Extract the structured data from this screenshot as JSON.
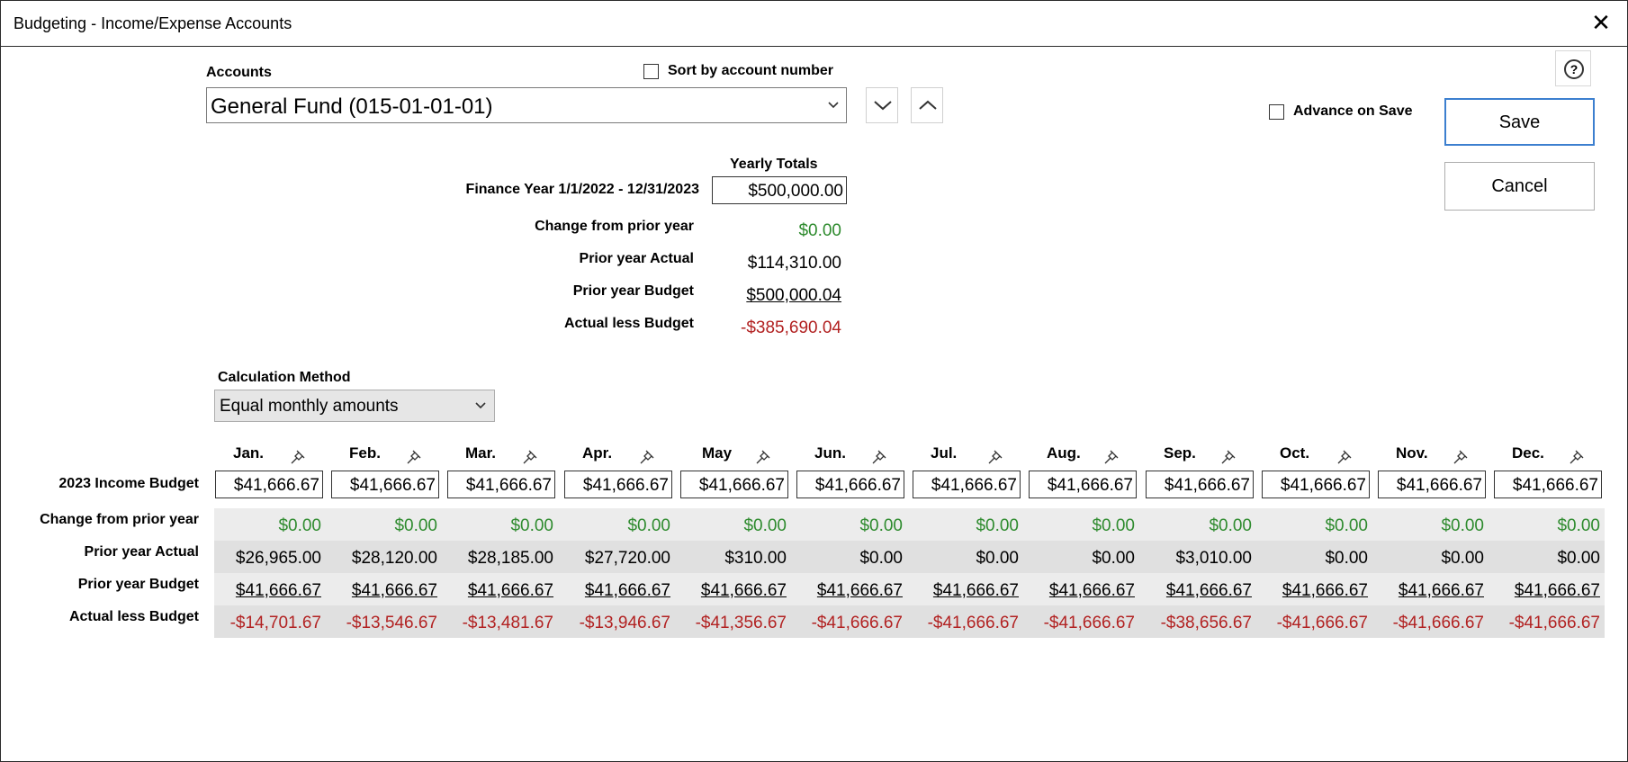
{
  "window": {
    "title": "Budgeting - Income/Expense Accounts"
  },
  "accounts": {
    "label": "Accounts",
    "sort_label": "Sort by account number",
    "selected": "General Fund (015-01-01-01)"
  },
  "actions": {
    "advance_label": "Advance on Save",
    "save_label": "Save",
    "cancel_label": "Cancel",
    "help_glyph": "?"
  },
  "summary": {
    "yearly_totals_label": "Yearly Totals",
    "finance_year_label": "Finance Year 1/1/2022 - 12/31/2023",
    "yearly_total_value": "$500,000.00",
    "change_label": "Change from prior year",
    "change_value": "$0.00",
    "prior_actual_label": "Prior year Actual",
    "prior_actual_value": "$114,310.00",
    "prior_budget_label": "Prior year Budget",
    "prior_budget_value": "$500,000.04",
    "actual_less_label": "Actual less Budget",
    "actual_less_value": "-$385,690.04"
  },
  "calc": {
    "label": "Calculation Method",
    "selected": "Equal monthly amounts"
  },
  "grid": {
    "months": [
      "Jan.",
      "Feb.",
      "Mar.",
      "Apr.",
      "May",
      "Jun.",
      "Jul.",
      "Aug.",
      "Sep.",
      "Oct.",
      "Nov.",
      "Dec."
    ],
    "budget_label": "2023 Income Budget",
    "budget": [
      "$41,666.67",
      "$41,666.67",
      "$41,666.67",
      "$41,666.67",
      "$41,666.67",
      "$41,666.67",
      "$41,666.67",
      "$41,666.67",
      "$41,666.67",
      "$41,666.67",
      "$41,666.67",
      "$41,666.67"
    ],
    "change_label": "Change from prior year",
    "change": [
      "$0.00",
      "$0.00",
      "$0.00",
      "$0.00",
      "$0.00",
      "$0.00",
      "$0.00",
      "$0.00",
      "$0.00",
      "$0.00",
      "$0.00",
      "$0.00"
    ],
    "prior_actual_label": "Prior year Actual",
    "prior_actual": [
      "$26,965.00",
      "$28,120.00",
      "$28,185.00",
      "$27,720.00",
      "$310.00",
      "$0.00",
      "$0.00",
      "$0.00",
      "$3,010.00",
      "$0.00",
      "$0.00",
      "$0.00"
    ],
    "prior_budget_label": "Prior year Budget",
    "prior_budget": [
      "$41,666.67",
      "$41,666.67",
      "$41,666.67",
      "$41,666.67",
      "$41,666.67",
      "$41,666.67",
      "$41,666.67",
      "$41,666.67",
      "$41,666.67",
      "$41,666.67",
      "$41,666.67",
      "$41,666.67"
    ],
    "actual_less_label": "Actual less Budget",
    "actual_less": [
      "-$14,701.67",
      "-$13,546.67",
      "-$13,481.67",
      "-$13,946.67",
      "-$41,356.67",
      "-$41,666.67",
      "-$41,666.67",
      "-$41,666.67",
      "-$38,656.67",
      "-$41,666.67",
      "-$41,666.67",
      "-$41,666.67"
    ]
  },
  "colors": {
    "positive": "#2e8b2e",
    "negative": "#b22222",
    "focus": "#3c7fcf"
  }
}
